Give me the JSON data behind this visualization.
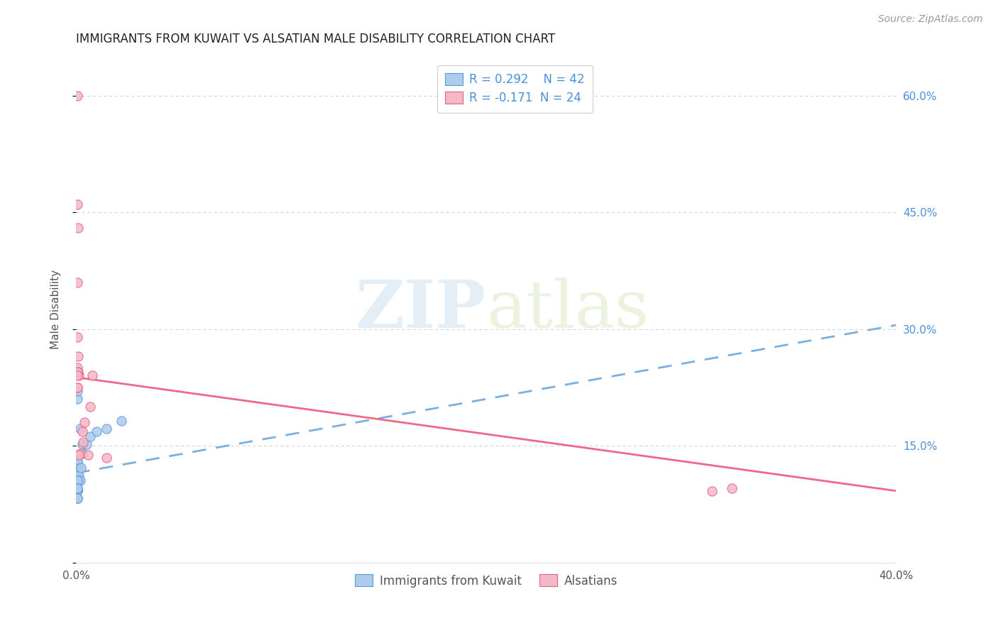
{
  "title": "IMMIGRANTS FROM KUWAIT VS ALSATIAN MALE DISABILITY CORRELATION CHART",
  "source": "Source: ZipAtlas.com",
  "ylabel": "Male Disability",
  "watermark_zip": "ZIP",
  "watermark_atlas": "atlas",
  "blue_R": 0.292,
  "blue_N": 42,
  "pink_R": -0.171,
  "pink_N": 24,
  "blue_color": "#aecbee",
  "pink_color": "#f5b8c8",
  "blue_edge_color": "#5b9bd5",
  "pink_edge_color": "#e86080",
  "blue_line_color": "#7ab0e0",
  "pink_line_color": "#f06888",
  "legend_text_color": "#4a90d9",
  "title_color": "#222222",
  "grid_color": "#cccccc",
  "right_axis_color": "#4a90d9",
  "blue_scatter_x": [
    0.0005,
    0.001,
    0.0008,
    0.0012,
    0.001,
    0.0005,
    0.0006,
    0.001,
    0.0005,
    0.0005,
    0.0006,
    0.001,
    0.0005,
    0.0005,
    0.0005,
    0.0006,
    0.0012,
    0.001,
    0.0005,
    0.0005,
    0.0005,
    0.0005,
    0.0005,
    0.0005,
    0.0005,
    0.0005,
    0.0005,
    0.002,
    0.0005,
    0.0005,
    0.0005,
    0.0005,
    0.0005,
    0.003,
    0.0025,
    0.002,
    0.003,
    0.005,
    0.007,
    0.01,
    0.015,
    0.022
  ],
  "blue_scatter_y": [
    0.105,
    0.105,
    0.112,
    0.105,
    0.113,
    0.12,
    0.122,
    0.122,
    0.13,
    0.12,
    0.112,
    0.122,
    0.112,
    0.105,
    0.13,
    0.12,
    0.112,
    0.105,
    0.105,
    0.093,
    0.093,
    0.093,
    0.093,
    0.093,
    0.083,
    0.083,
    0.083,
    0.105,
    0.105,
    0.095,
    0.095,
    0.21,
    0.22,
    0.14,
    0.122,
    0.172,
    0.152,
    0.152,
    0.162,
    0.168,
    0.172,
    0.182
  ],
  "pink_scatter_x": [
    0.0005,
    0.0006,
    0.001,
    0.0005,
    0.0006,
    0.001,
    0.0005,
    0.0015,
    0.0005,
    0.0005,
    0.001,
    0.0005,
    0.0005,
    0.003,
    0.0035,
    0.004,
    0.002,
    0.0015,
    0.006,
    0.007,
    0.008,
    0.015,
    0.31,
    0.32
  ],
  "pink_scatter_y": [
    0.6,
    0.46,
    0.43,
    0.36,
    0.29,
    0.265,
    0.25,
    0.24,
    0.225,
    0.225,
    0.245,
    0.245,
    0.24,
    0.168,
    0.155,
    0.18,
    0.14,
    0.138,
    0.138,
    0.2,
    0.24,
    0.135,
    0.092,
    0.095
  ],
  "blue_line_x": [
    0.0,
    0.4
  ],
  "blue_line_y": [
    0.115,
    0.305
  ],
  "pink_line_x": [
    0.0,
    0.4
  ],
  "pink_line_y": [
    0.238,
    0.092
  ],
  "xlim": [
    0.0,
    0.4
  ],
  "ylim": [
    0.0,
    0.65
  ],
  "yticks": [
    0.0,
    0.15,
    0.3,
    0.45,
    0.6
  ],
  "ytick_labels_right": [
    "",
    "15.0%",
    "30.0%",
    "45.0%",
    "60.0%"
  ],
  "xticks": [
    0.0,
    0.1,
    0.2,
    0.3,
    0.4
  ],
  "xtick_labels": [
    "0.0%",
    "",
    "",
    "",
    "40.0%"
  ]
}
